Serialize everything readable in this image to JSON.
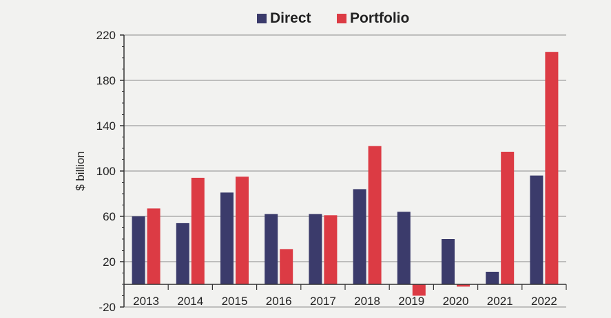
{
  "chart_data": {
    "type": "bar",
    "categories": [
      "2013",
      "2014",
      "2015",
      "2016",
      "2017",
      "2018",
      "2019",
      "2020",
      "2021",
      "2022"
    ],
    "series": [
      {
        "name": "Direct",
        "color": "#3b3b6b",
        "values": [
          60,
          54,
          81,
          62,
          62,
          84,
          64,
          40,
          11,
          96
        ]
      },
      {
        "name": "Portfolio",
        "color": "#dc3b44",
        "values": [
          67,
          94,
          95,
          31,
          61,
          122,
          -10,
          -2,
          117,
          205
        ]
      }
    ],
    "title": "",
    "xlabel": "",
    "ylabel": "$ billion",
    "ylim": [
      -20,
      220
    ],
    "yticks": [
      -20,
      20,
      60,
      100,
      140,
      180,
      220
    ],
    "grid": true,
    "legend": "top-center"
  }
}
